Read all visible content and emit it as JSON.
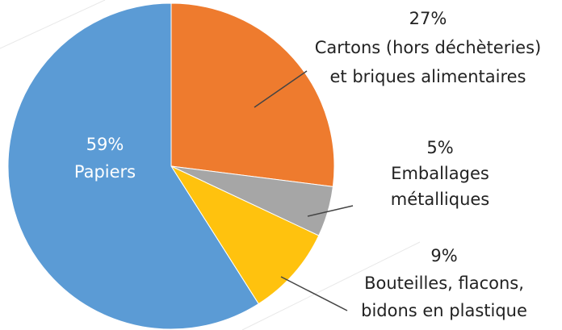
{
  "chart_data": {
    "type": "pie",
    "categories": [
      [
        "Cartons (hors déchèteries)",
        "et briques alimentaires"
      ],
      [
        "Emballages",
        "métalliques"
      ],
      [
        "Bouteilles, flacons,",
        "bidons en plastique"
      ],
      [
        "Papiers"
      ]
    ],
    "values": [
      27,
      5,
      9,
      59
    ],
    "value_labels": [
      "27%",
      "5%",
      "9%",
      "59%"
    ],
    "colors": [
      "#ee7b2e",
      "#a6a6a6",
      "#ffc20e",
      "#5b9bd5"
    ]
  }
}
